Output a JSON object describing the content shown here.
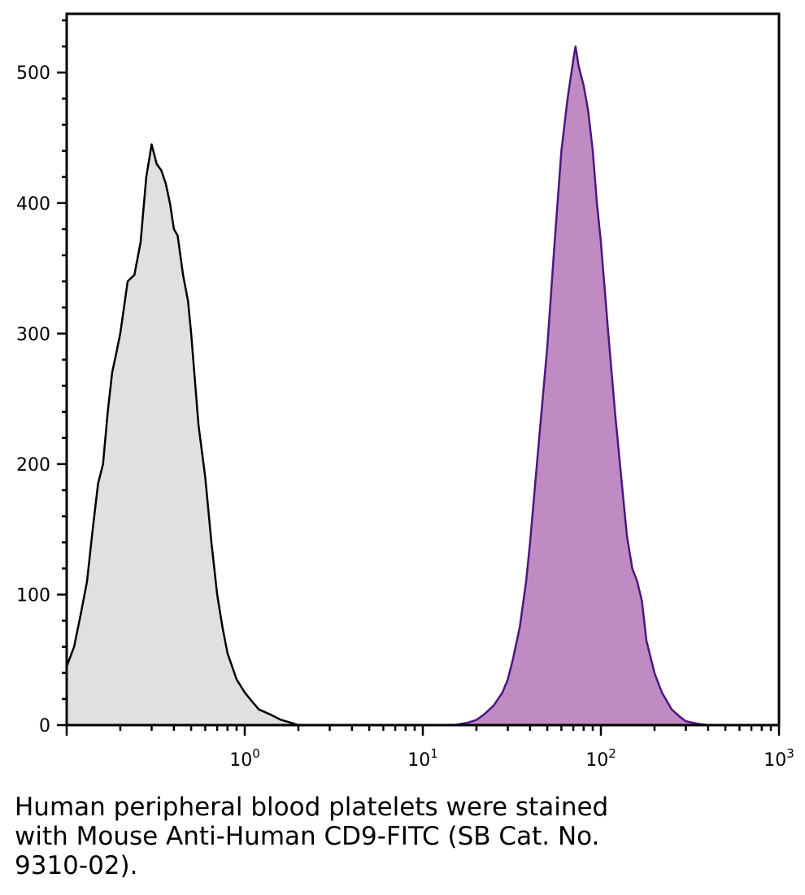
{
  "chart_data": {
    "type": "area",
    "x_scale": "log",
    "xlim": [
      0.1,
      1000
    ],
    "ylim": [
      0,
      545
    ],
    "grid": false,
    "legend": "none",
    "title": "",
    "xlabel": "",
    "ylabel": "",
    "x_ticks": [
      {
        "value": 1,
        "base": "10",
        "exp": "0"
      },
      {
        "value": 10,
        "base": "10",
        "exp": "1"
      },
      {
        "value": 100,
        "base": "10",
        "exp": "2"
      },
      {
        "value": 1000,
        "base": "10",
        "exp": "3"
      }
    ],
    "y_ticks": [
      0,
      100,
      200,
      300,
      400,
      500
    ],
    "series": [
      {
        "fill": "#e0e0e0",
        "stroke": "#000000",
        "x": [
          0.1,
          0.11,
          0.12,
          0.13,
          0.14,
          0.15,
          0.16,
          0.17,
          0.18,
          0.19,
          0.2,
          0.22,
          0.24,
          0.26,
          0.28,
          0.3,
          0.32,
          0.34,
          0.36,
          0.38,
          0.4,
          0.42,
          0.45,
          0.48,
          0.5,
          0.55,
          0.6,
          0.65,
          0.7,
          0.75,
          0.8,
          0.9,
          1.0,
          1.1,
          1.2,
          1.4,
          1.6,
          1.8,
          2.0
        ],
        "y": [
          45,
          60,
          85,
          110,
          150,
          185,
          200,
          240,
          270,
          285,
          300,
          340,
          345,
          370,
          420,
          445,
          430,
          425,
          415,
          400,
          380,
          375,
          345,
          325,
          300,
          230,
          190,
          140,
          100,
          75,
          55,
          35,
          25,
          18,
          12,
          8,
          4,
          2,
          0
        ]
      },
      {
        "fill": "#c08ac2",
        "stroke": "#4b1780",
        "x": [
          15,
          18,
          20,
          22,
          25,
          28,
          30,
          32,
          35,
          38,
          40,
          45,
          50,
          55,
          60,
          65,
          70,
          72,
          75,
          80,
          85,
          90,
          95,
          100,
          110,
          120,
          130,
          140,
          150,
          160,
          170,
          180,
          200,
          220,
          250,
          280,
          300,
          350,
          400,
          500
        ],
        "y": [
          0,
          2,
          4,
          8,
          15,
          25,
          35,
          50,
          75,
          110,
          140,
          220,
          290,
          370,
          440,
          480,
          510,
          520,
          505,
          490,
          470,
          440,
          400,
          370,
          300,
          240,
          190,
          145,
          120,
          110,
          95,
          65,
          40,
          25,
          12,
          6,
          3,
          1,
          0,
          0
        ]
      }
    ]
  },
  "caption": "Human peripheral blood platelets were stained with Mouse Anti-Human CD9-FITC (SB Cat. No. 9310-02)."
}
